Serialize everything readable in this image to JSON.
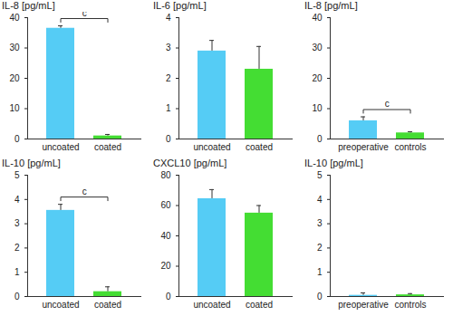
{
  "chart_data": [
    {
      "type": "bar",
      "title": "IL-8 [pg/mL]",
      "categories": [
        "uncoated",
        "coated"
      ],
      "values": [
        36.5,
        1.0
      ],
      "errors": [
        0.8,
        0.5
      ],
      "colors": [
        "#55ccf5",
        "#44dd33"
      ],
      "ylim": [
        0,
        40
      ],
      "yticks": [
        0,
        10,
        20,
        30,
        40
      ],
      "annotations": [
        {
          "text": "c",
          "categories": [
            "uncoated",
            "coated"
          ]
        }
      ]
    },
    {
      "type": "bar",
      "title": "IL-6 [pg/mL]",
      "categories": [
        "uncoated",
        "coated"
      ],
      "values": [
        2.9,
        2.3
      ],
      "errors": [
        0.35,
        0.75
      ],
      "colors": [
        "#55ccf5",
        "#44dd33"
      ],
      "ylim": [
        0,
        4
      ],
      "yticks": [
        0,
        1,
        2,
        3,
        4
      ]
    },
    {
      "type": "bar",
      "title": "IL-8 [pg/mL]",
      "categories": [
        "preoperative",
        "controls"
      ],
      "values": [
        6.0,
        2.0
      ],
      "errors": [
        1.3,
        0.4
      ],
      "colors": [
        "#55ccf5",
        "#44dd33"
      ],
      "ylim": [
        0,
        40
      ],
      "yticks": [
        0,
        10,
        20,
        30,
        40
      ],
      "annotations": [
        {
          "text": "c",
          "categories": [
            "preoperative",
            "controls"
          ]
        }
      ]
    },
    {
      "type": "bar",
      "title": "IL-10 [pg/mL]",
      "categories": [
        "uncoated",
        "coated"
      ],
      "values": [
        3.55,
        0.2
      ],
      "errors": [
        0.25,
        0.2
      ],
      "colors": [
        "#55ccf5",
        "#44dd33"
      ],
      "ylim": [
        0,
        5
      ],
      "yticks": [
        0,
        1,
        2,
        3,
        4,
        5
      ],
      "annotations": [
        {
          "text": "c",
          "categories": [
            "uncoated",
            "coated"
          ]
        }
      ]
    },
    {
      "type": "bar",
      "title": "CXCL10 [pg/mL]",
      "categories": [
        "uncoated",
        "coated"
      ],
      "values": [
        64.5,
        55.0
      ],
      "errors": [
        6.0,
        5.0
      ],
      "colors": [
        "#55ccf5",
        "#44dd33"
      ],
      "ylim": [
        0,
        80
      ],
      "yticks": [
        0,
        20,
        40,
        60,
        80
      ]
    },
    {
      "type": "bar",
      "title": "IL-10 [pg/mL]",
      "categories": [
        "preoperative",
        "controls"
      ],
      "values": [
        0.05,
        0.07
      ],
      "errors": [
        0.1,
        0.05
      ],
      "colors": [
        "#55ccf5",
        "#44dd33"
      ],
      "ylim": [
        0,
        5
      ],
      "yticks": [
        0,
        1,
        2,
        3,
        4,
        5
      ]
    }
  ]
}
